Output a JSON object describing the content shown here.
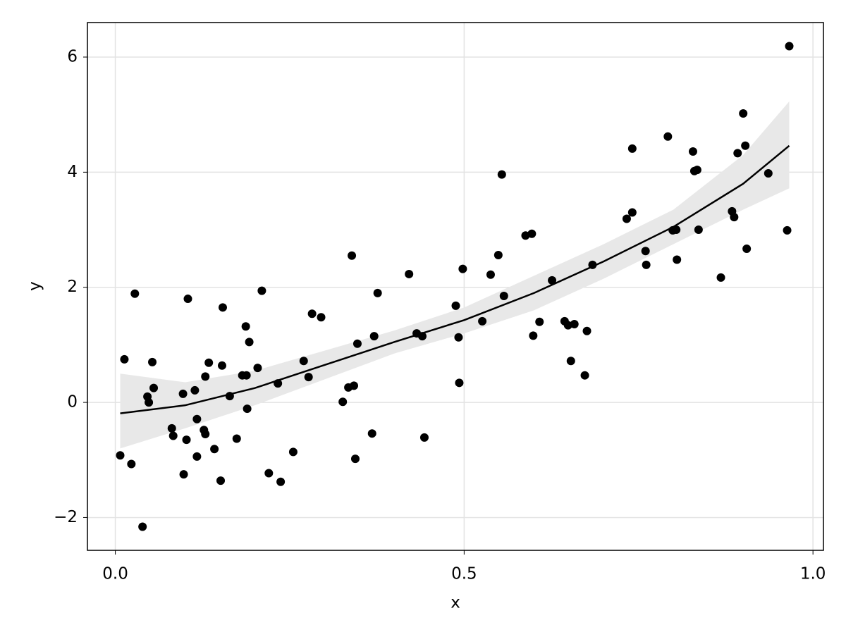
{
  "chart_data": {
    "type": "scatter",
    "x_label": "x",
    "y_label": "y",
    "xlim": [
      -0.04,
      1.015
    ],
    "ylim": [
      -2.57,
      6.6
    ],
    "xticks": [
      {
        "value": 0,
        "label": "0.0"
      },
      0.5,
      {
        "value": 1,
        "label": "1.0"
      }
    ],
    "yticks": [
      {
        "value": -2,
        "label": "−2"
      },
      0,
      2,
      4,
      6
    ],
    "grid": true,
    "series": [
      {
        "color": "#000000",
        "x": [
          0.007,
          0.013,
          0.023,
          0.028,
          0.039,
          0.046,
          0.048,
          0.053,
          0.055,
          0.081,
          0.083,
          0.097,
          0.098,
          0.102,
          0.104,
          0.114,
          0.117,
          0.117,
          0.127,
          0.129,
          0.129,
          0.134,
          0.142,
          0.151,
          0.153,
          0.154,
          0.164,
          0.174,
          0.182,
          0.187,
          0.188,
          0.189,
          0.192,
          0.204,
          0.21,
          0.22,
          0.233,
          0.237,
          0.255,
          0.27,
          0.277,
          0.282,
          0.295,
          0.326,
          0.334,
          0.339,
          0.342,
          0.344,
          0.347,
          0.368,
          0.371,
          0.376,
          0.421,
          0.432,
          0.44,
          0.443,
          0.488,
          0.492,
          0.493,
          0.498,
          0.526,
          0.538,
          0.549,
          0.554,
          0.557,
          0.588,
          0.597,
          0.599,
          0.608,
          0.626,
          0.644,
          0.649,
          0.653,
          0.658,
          0.676,
          0.673,
          0.684,
          0.733,
          0.741,
          0.741,
          0.76,
          0.761,
          0.792,
          0.799,
          0.804,
          0.805,
          0.828,
          0.83,
          0.834,
          0.836,
          0.868,
          0.884,
          0.887,
          0.892,
          0.9,
          0.903,
          0.905,
          0.936,
          0.963,
          0.966
        ],
        "values": [
          -0.92,
          0.75,
          -1.07,
          1.89,
          -2.16,
          0.1,
          0,
          0.7,
          0.25,
          -0.45,
          -0.58,
          0.15,
          -1.25,
          -0.65,
          1.8,
          0.21,
          -0.29,
          -0.94,
          -0.48,
          0.45,
          -0.55,
          0.69,
          -0.81,
          -1.36,
          0.64,
          1.65,
          0.11,
          -0.63,
          0.47,
          1.32,
          0.47,
          -0.11,
          1.05,
          0.6,
          1.94,
          -1.23,
          0.33,
          -1.38,
          -0.86,
          0.72,
          0.44,
          1.54,
          1.48,
          0.01,
          0.26,
          2.55,
          0.29,
          -0.98,
          1.02,
          -0.54,
          1.15,
          1.9,
          2.23,
          1.2,
          1.15,
          -0.61,
          1.68,
          1.13,
          0.34,
          2.32,
          1.41,
          2.22,
          2.56,
          3.96,
          1.85,
          2.9,
          2.93,
          1.16,
          1.4,
          2.12,
          1.41,
          1.34,
          0.72,
          1.36,
          1.24,
          0.47,
          2.39,
          3.19,
          4.41,
          3.3,
          2.63,
          2.39,
          4.62,
          2.99,
          3.0,
          2.48,
          4.36,
          4.02,
          4.04,
          3.0,
          2.17,
          3.32,
          3.22,
          4.33,
          5.02,
          4.46,
          2.67,
          3.98,
          2.99,
          6.19
        ]
      }
    ],
    "fit": {
      "color": "#000000",
      "band_color": "#e8e8e8",
      "x": [
        0.007,
        0.1,
        0.2,
        0.3,
        0.4,
        0.5,
        0.6,
        0.7,
        0.8,
        0.9,
        0.966
      ],
      "values": [
        -0.19,
        -0.05,
        0.25,
        0.65,
        1.05,
        1.43,
        1.9,
        2.45,
        3.05,
        3.8,
        4.46
      ],
      "lower": [
        -0.8,
        -0.45,
        -0.05,
        0.4,
        0.85,
        1.2,
        1.6,
        2.15,
        2.75,
        3.35,
        3.72
      ],
      "upper": [
        0.5,
        0.35,
        0.55,
        0.9,
        1.25,
        1.65,
        2.2,
        2.75,
        3.35,
        4.3,
        5.23
      ]
    }
  }
}
